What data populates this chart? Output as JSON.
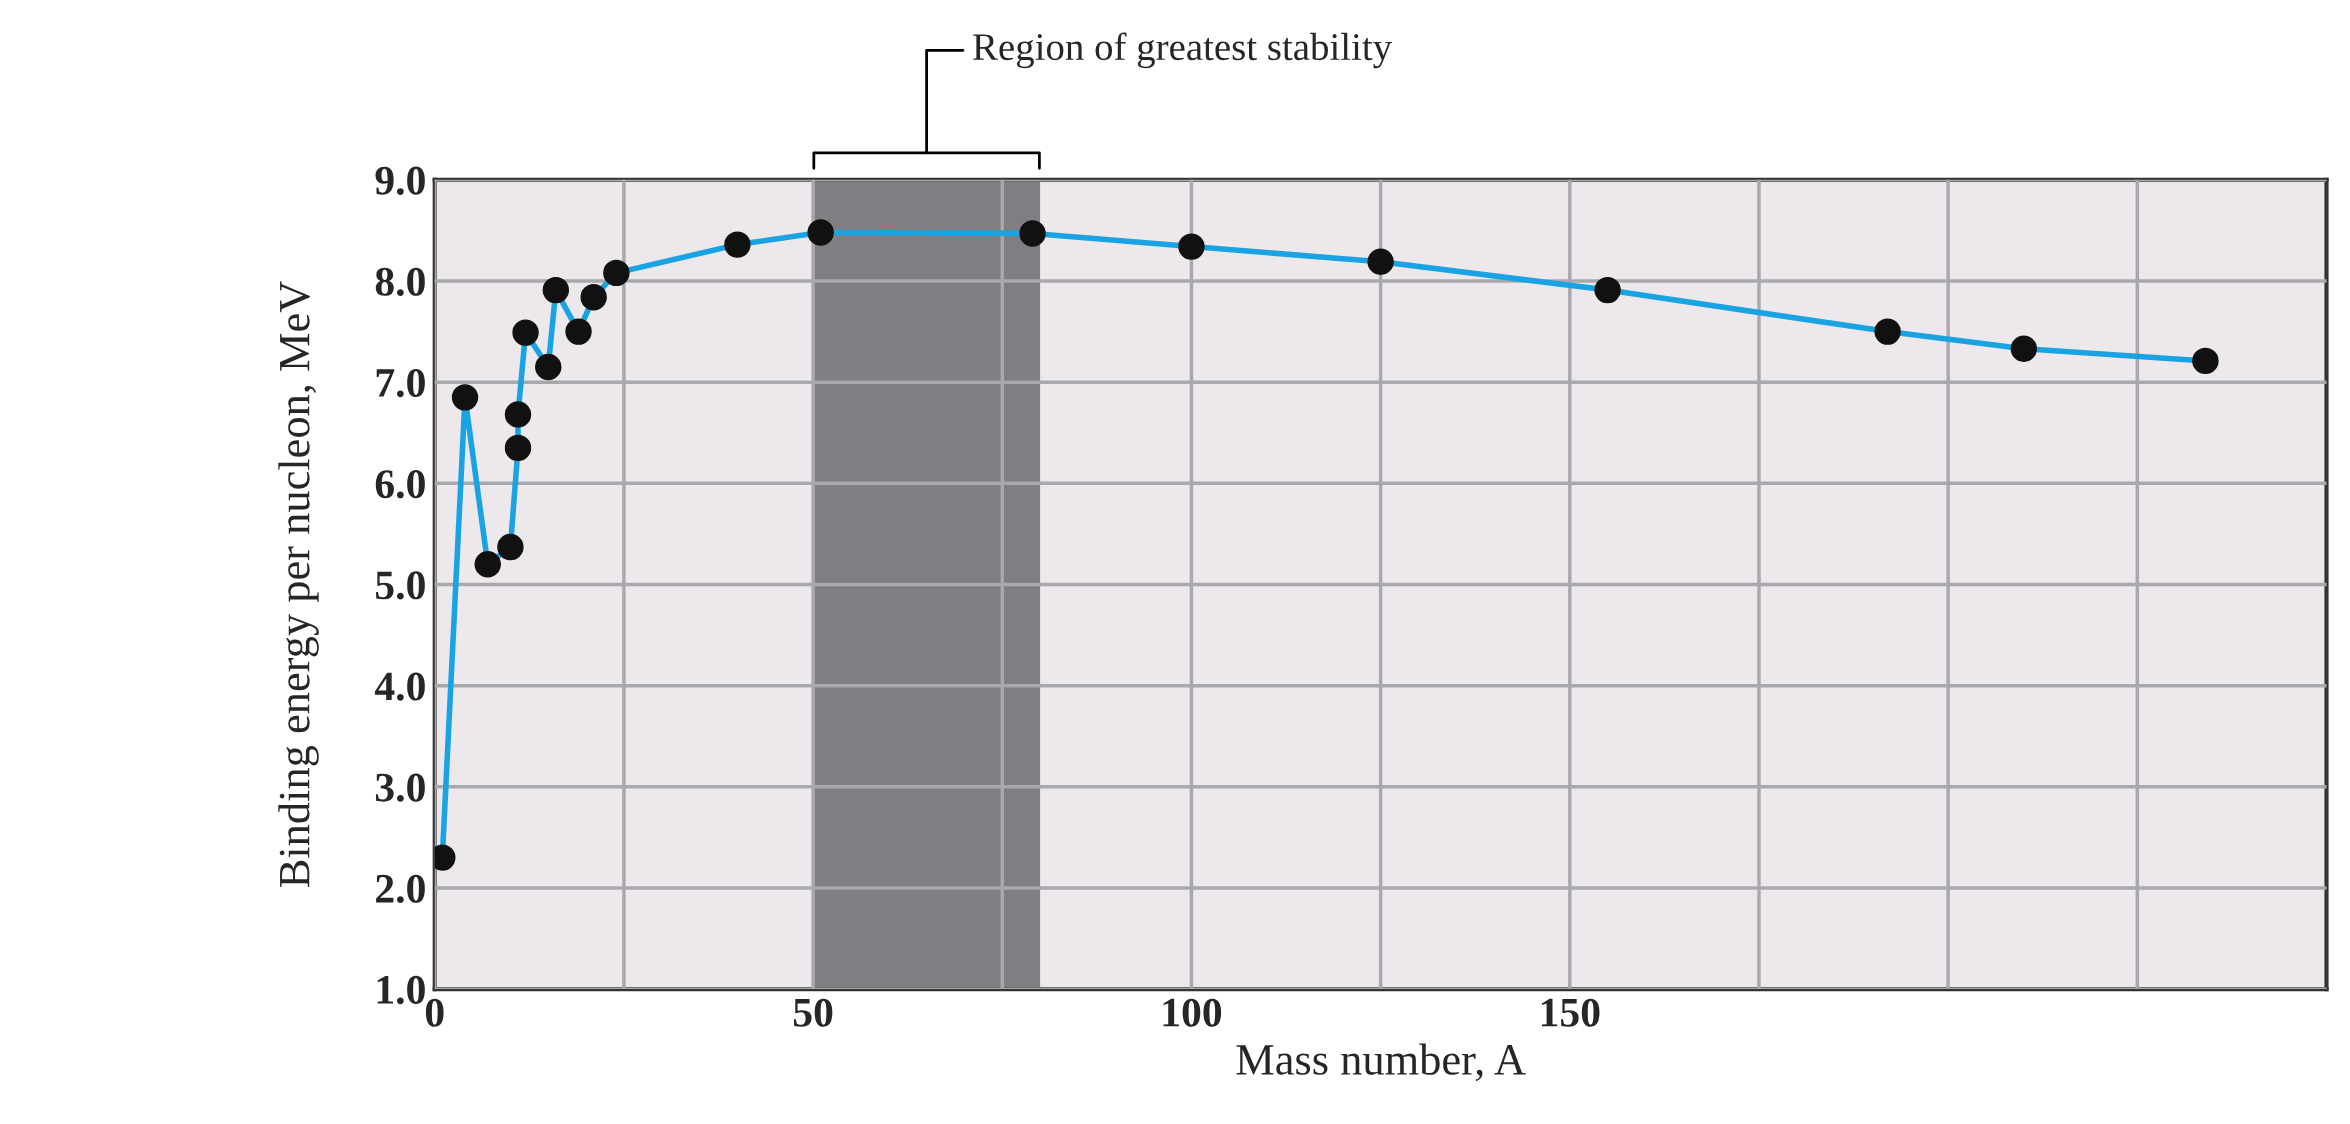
{
  "chart_data": {
    "type": "line",
    "xlabel": "Mass number, A",
    "ylabel": "Binding energy per nucleon, MeV",
    "x": [
      1,
      4,
      7,
      10,
      11,
      11,
      12,
      15,
      16,
      19,
      21,
      24,
      40,
      51,
      79,
      100,
      125,
      155,
      192,
      210,
      234
    ],
    "series": [
      {
        "color": "#1aa3e3",
        "values": [
          2.3,
          6.85,
          5.2,
          5.37,
          6.35,
          6.68,
          7.49,
          7.15,
          7.91,
          7.5,
          7.84,
          8.08,
          8.36,
          8.48,
          8.47,
          8.34,
          8.19,
          7.91,
          7.5,
          7.33,
          7.21
        ]
      }
    ],
    "marker": "circle",
    "line_style": "solid",
    "xlim": [
      0,
      250
    ],
    "ylim": [
      1.0,
      9.0
    ],
    "xticks": [
      0,
      {
        "value": 25,
        "label": null
      },
      50,
      {
        "value": 75,
        "label": null
      },
      100,
      {
        "value": 125,
        "label": null
      },
      150,
      {
        "value": 175,
        "label": null
      },
      {
        "value": 200,
        "label": null
      },
      {
        "value": 225,
        "label": null
      }
    ],
    "yticks": [
      {
        "value": 1,
        "label": "1.0"
      },
      {
        "value": 2,
        "label": "2.0"
      },
      {
        "value": 3,
        "label": "3.0"
      },
      {
        "value": 4,
        "label": "4.0"
      },
      {
        "value": 5,
        "label": "5.0"
      },
      {
        "value": 6,
        "label": "6.0"
      },
      {
        "value": 7,
        "label": "7.0"
      },
      {
        "value": 8,
        "label": "8.0"
      },
      {
        "value": 9,
        "label": "9.0"
      }
    ],
    "grid": true,
    "legend": false,
    "bands": [
      {
        "axis": "x",
        "from": 50,
        "to": 80,
        "label": "Region of greatest stability",
        "color": "#807e82"
      }
    ]
  }
}
